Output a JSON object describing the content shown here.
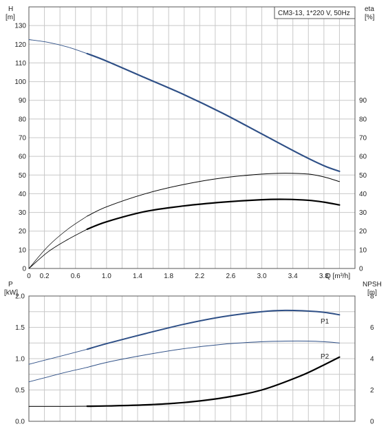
{
  "chart_data": [
    {
      "type": "line",
      "id": "upper",
      "title": "CM3-13, 1*220 V, 50Hz",
      "xlabel": "Q [m³/h]",
      "ylabel_left": {
        "name": "H",
        "unit": "[m]"
      },
      "ylabel_right": {
        "name": "eta",
        "unit": "[%]"
      },
      "xlim": [
        0,
        4.2
      ],
      "xticks": [
        0,
        0.2,
        0.6,
        1.0,
        1.4,
        1.8,
        2.2,
        2.6,
        3.0,
        3.4,
        3.8
      ],
      "xtick_labels": [
        "0",
        "0.2",
        "0.6",
        "1.0",
        "1.4",
        "1.8",
        "2.2",
        "2.6",
        "3.0",
        "3.4",
        "3.8"
      ],
      "ylim_left": [
        0,
        140
      ],
      "yticks_left": [
        0,
        10,
        20,
        30,
        40,
        50,
        60,
        70,
        80,
        90,
        100,
        110,
        120,
        130
      ],
      "ylim_right": [
        0,
        140
      ],
      "yticks_right": [
        0,
        10,
        20,
        30,
        40,
        50,
        60,
        70,
        80,
        90
      ],
      "grid": true,
      "series": [
        {
          "key": "H",
          "color": "#2e4f86",
          "width": 2.2,
          "thin_width": 0.9,
          "bold_from": 0.75,
          "x": [
            0,
            0.25,
            0.5,
            0.75,
            1.0,
            1.5,
            2.0,
            2.5,
            3.0,
            3.5,
            3.8,
            4.0
          ],
          "y": [
            122.5,
            121,
            118.5,
            115,
            111,
            102,
            93,
            83,
            72,
            61,
            55,
            52
          ]
        },
        {
          "key": "eta_thin",
          "color": "#000000",
          "width": 1.0,
          "thin_width": 0.7,
          "bold_from": 0.75,
          "x": [
            0,
            0.25,
            0.5,
            0.75,
            1.0,
            1.5,
            2.0,
            2.5,
            3.0,
            3.3,
            3.6,
            3.8,
            4.0
          ],
          "y": [
            0,
            12,
            21,
            28,
            33,
            40,
            45,
            48.5,
            50.5,
            51,
            50.5,
            49,
            46.5
          ]
        },
        {
          "key": "eta_bold",
          "color": "#000000",
          "width": 2.2,
          "thin_width": 0.9,
          "bold_from": 0.75,
          "x": [
            0,
            0.25,
            0.5,
            0.75,
            1.0,
            1.5,
            2.0,
            2.5,
            3.0,
            3.3,
            3.6,
            3.8,
            4.0
          ],
          "y": [
            0,
            9,
            15.5,
            21,
            25,
            30.5,
            33.5,
            35.5,
            36.8,
            37,
            36.5,
            35.5,
            34
          ]
        }
      ]
    },
    {
      "type": "line",
      "id": "lower",
      "xlim": [
        0,
        4.2
      ],
      "ylabel_left": {
        "name": "P",
        "unit": "[kW]"
      },
      "ylabel_right": {
        "name": "NPSH",
        "unit": "[m]"
      },
      "ylim_left": [
        0,
        2.0
      ],
      "yticks_left": [
        0,
        0.5,
        1.0,
        1.5,
        2.0
      ],
      "ytick_labels_left": [
        "0.0",
        "0.5",
        "1.0",
        "1.5",
        "2.0"
      ],
      "ylim_right": [
        0,
        8
      ],
      "yticks_right": [
        0,
        2,
        4,
        6,
        8
      ],
      "grid": true,
      "series": [
        {
          "key": "P1",
          "name": "P1",
          "axis": "left",
          "color": "#2e4f86",
          "width": 2.0,
          "thin_width": 0.9,
          "bold_from": 0.75,
          "x": [
            0,
            0.25,
            0.5,
            0.75,
            1.0,
            1.5,
            2.0,
            2.5,
            3.0,
            3.3,
            3.6,
            3.8,
            4.0
          ],
          "y": [
            0.91,
            0.99,
            1.07,
            1.15,
            1.24,
            1.4,
            1.55,
            1.67,
            1.75,
            1.77,
            1.76,
            1.74,
            1.7
          ]
        },
        {
          "key": "P2",
          "name": "P2",
          "axis": "left",
          "color": "#2e4f86",
          "width": 1.0,
          "thin_width": 0.9,
          "bold_from": 0.75,
          "x": [
            0,
            0.25,
            0.5,
            0.75,
            1.0,
            1.5,
            2.0,
            2.5,
            3.0,
            3.3,
            3.6,
            3.8,
            4.0
          ],
          "y": [
            0.63,
            0.71,
            0.79,
            0.86,
            0.94,
            1.06,
            1.16,
            1.23,
            1.27,
            1.28,
            1.28,
            1.27,
            1.25
          ]
        },
        {
          "key": "NPSH",
          "axis": "right",
          "color": "#000000",
          "width": 2.2,
          "thin_width": 0.9,
          "bold_from": 0.75,
          "x": [
            0,
            0.25,
            0.5,
            0.75,
            1.0,
            1.5,
            2.0,
            2.5,
            3.0,
            3.5,
            3.8,
            4.0
          ],
          "y": [
            0.95,
            0.95,
            0.95,
            0.96,
            0.98,
            1.05,
            1.2,
            1.5,
            2.0,
            2.9,
            3.6,
            4.1
          ]
        }
      ]
    }
  ]
}
